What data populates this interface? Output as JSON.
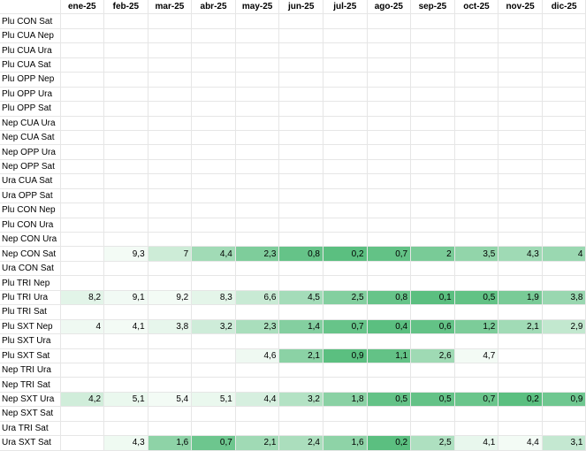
{
  "months": [
    "ene-25",
    "feb-25",
    "mar-25",
    "abr-25",
    "may-25",
    "jun-25",
    "jul-25",
    "ago-25",
    "sep-25",
    "oct-25",
    "nov-25",
    "dic-25"
  ],
  "corner": "",
  "color_scale": {
    "low": "#5bbf80",
    "high": "#f3fbf5"
  },
  "rows": [
    {
      "label": "Plu CON Sat",
      "values": [
        "",
        "",
        "",
        "",
        "",
        "",
        "",
        "",
        "",
        "",
        "",
        ""
      ]
    },
    {
      "label": "Plu CUA Nep",
      "values": [
        "",
        "",
        "",
        "",
        "",
        "",
        "",
        "",
        "",
        "",
        "",
        ""
      ]
    },
    {
      "label": "Plu CUA Ura",
      "values": [
        "",
        "",
        "",
        "",
        "",
        "",
        "",
        "",
        "",
        "",
        "",
        ""
      ]
    },
    {
      "label": "Plu CUA Sat",
      "values": [
        "",
        "",
        "",
        "",
        "",
        "",
        "",
        "",
        "",
        "",
        "",
        ""
      ]
    },
    {
      "label": "Plu OPP Nep",
      "values": [
        "",
        "",
        "",
        "",
        "",
        "",
        "",
        "",
        "",
        "",
        "",
        ""
      ]
    },
    {
      "label": "Plu OPP Ura",
      "values": [
        "",
        "",
        "",
        "",
        "",
        "",
        "",
        "",
        "",
        "",
        "",
        ""
      ]
    },
    {
      "label": "Plu OPP Sat",
      "values": [
        "",
        "",
        "",
        "",
        "",
        "",
        "",
        "",
        "",
        "",
        "",
        ""
      ]
    },
    {
      "label": "Nep CUA Ura",
      "values": [
        "",
        "",
        "",
        "",
        "",
        "",
        "",
        "",
        "",
        "",
        "",
        ""
      ]
    },
    {
      "label": "Nep CUA Sat",
      "values": [
        "",
        "",
        "",
        "",
        "",
        "",
        "",
        "",
        "",
        "",
        "",
        ""
      ]
    },
    {
      "label": "Nep OPP Ura",
      "values": [
        "",
        "",
        "",
        "",
        "",
        "",
        "",
        "",
        "",
        "",
        "",
        ""
      ]
    },
    {
      "label": "Nep OPP Sat",
      "values": [
        "",
        "",
        "",
        "",
        "",
        "",
        "",
        "",
        "",
        "",
        "",
        ""
      ]
    },
    {
      "label": "Ura CUA Sat",
      "values": [
        "",
        "",
        "",
        "",
        "",
        "",
        "",
        "",
        "",
        "",
        "",
        ""
      ]
    },
    {
      "label": "Ura OPP Sat",
      "values": [
        "",
        "",
        "",
        "",
        "",
        "",
        "",
        "",
        "",
        "",
        "",
        ""
      ]
    },
    {
      "label": "Plu CON Nep",
      "values": [
        "",
        "",
        "",
        "",
        "",
        "",
        "",
        "",
        "",
        "",
        "",
        ""
      ]
    },
    {
      "label": "Plu CON Ura",
      "values": [
        "",
        "",
        "",
        "",
        "",
        "",
        "",
        "",
        "",
        "",
        "",
        ""
      ]
    },
    {
      "label": "Nep CON Ura",
      "values": [
        "",
        "",
        "",
        "",
        "",
        "",
        "",
        "",
        "",
        "",
        "",
        ""
      ]
    },
    {
      "label": "Nep CON Sat",
      "values": [
        "",
        "9,3",
        "7",
        "4,4",
        "2,3",
        "0,8",
        "0,2",
        "0,7",
        "2",
        "3,5",
        "4,3",
        "4"
      ]
    },
    {
      "label": "Ura CON Sat",
      "values": [
        "",
        "",
        "",
        "",
        "",
        "",
        "",
        "",
        "",
        "",
        "",
        ""
      ]
    },
    {
      "label": "Plu TRI Nep",
      "values": [
        "",
        "",
        "",
        "",
        "",
        "",
        "",
        "",
        "",
        "",
        "",
        ""
      ]
    },
    {
      "label": "Plu TRI Ura",
      "values": [
        "8,2",
        "9,1",
        "9,2",
        "8,3",
        "6,6",
        "4,5",
        "2,5",
        "0,8",
        "0,1",
        "0,5",
        "1,9",
        "3,8"
      ]
    },
    {
      "label": "Plu TRI Sat",
      "values": [
        "",
        "",
        "",
        "",
        "",
        "",
        "",
        "",
        "",
        "",
        "",
        ""
      ]
    },
    {
      "label": "Plu SXT Nep",
      "values": [
        "4",
        "4,1",
        "3,8",
        "3,2",
        "2,3",
        "1,4",
        "0,7",
        "0,4",
        "0,6",
        "1,2",
        "2,1",
        "2,9"
      ]
    },
    {
      "label": "Plu SXT Ura",
      "values": [
        "",
        "",
        "",
        "",
        "",
        "",
        "",
        "",
        "",
        "",
        "",
        ""
      ]
    },
    {
      "label": "Plu SXT Sat",
      "values": [
        "",
        "",
        "",
        "",
        "4,6",
        "2,1",
        "0,9",
        "1,1",
        "2,6",
        "4,7",
        "",
        ""
      ]
    },
    {
      "label": "Nep TRI Ura",
      "values": [
        "",
        "",
        "",
        "",
        "",
        "",
        "",
        "",
        "",
        "",
        "",
        ""
      ]
    },
    {
      "label": "Nep TRI Sat",
      "values": [
        "",
        "",
        "",
        "",
        "",
        "",
        "",
        "",
        "",
        "",
        "",
        ""
      ]
    },
    {
      "label": "Nep SXT Ura",
      "values": [
        "4,2",
        "5,1",
        "5,4",
        "5,1",
        "4,4",
        "3,2",
        "1,8",
        "0,5",
        "0,5",
        "0,7",
        "0,2",
        "0,9"
      ]
    },
    {
      "label": "Nep SXT Sat",
      "values": [
        "",
        "",
        "",
        "",
        "",
        "",
        "",
        "",
        "",
        "",
        "",
        ""
      ]
    },
    {
      "label": "Ura TRI Sat",
      "values": [
        "",
        "",
        "",
        "",
        "",
        "",
        "",
        "",
        "",
        "",
        "",
        ""
      ]
    },
    {
      "label": "Ura SXT Sat",
      "values": [
        "",
        "4,3",
        "1,6",
        "0,7",
        "2,1",
        "2,4",
        "1,6",
        "0,2",
        "2,5",
        "4,1",
        "4,4",
        "3,1"
      ]
    }
  ]
}
